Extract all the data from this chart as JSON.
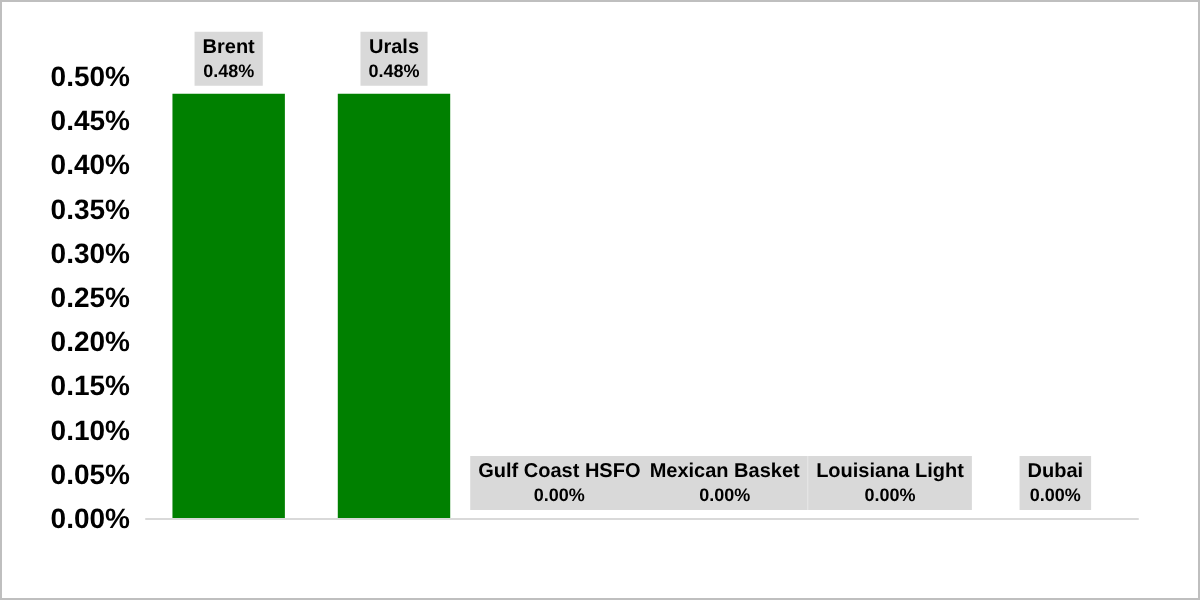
{
  "chart_data": {
    "type": "bar",
    "categories": [
      "Brent",
      "Urals",
      "Gulf Coast HSFO",
      "Mexican Basket",
      "Louisiana Light",
      "Dubai"
    ],
    "values": [
      0.48,
      0.48,
      0,
      0,
      0,
      0
    ],
    "value_labels": [
      "0.48%",
      "0.48%",
      "0.00%",
      "0.00%",
      "0.00%",
      "0.00%"
    ],
    "color": "#008000",
    "ylim": [
      0,
      0.5
    ],
    "yticks": [
      {
        "value": 0,
        "label": "0.00%"
      },
      {
        "value": 0.05,
        "label": "0.05%"
      },
      {
        "value": 0.1,
        "label": "0.10%"
      },
      {
        "value": 0.15,
        "label": "0.15%"
      },
      {
        "value": 0.2,
        "label": "0.20%"
      },
      {
        "value": 0.25,
        "label": "0.25%"
      },
      {
        "value": 0.3,
        "label": "0.30%"
      },
      {
        "value": 0.35,
        "label": "0.35%"
      },
      {
        "value": 0.4,
        "label": "0.40%"
      },
      {
        "value": 0.45,
        "label": "0.45%"
      },
      {
        "value": 0.5,
        "label": "0.50%"
      }
    ],
    "tick_labels": "y",
    "grid": false
  }
}
